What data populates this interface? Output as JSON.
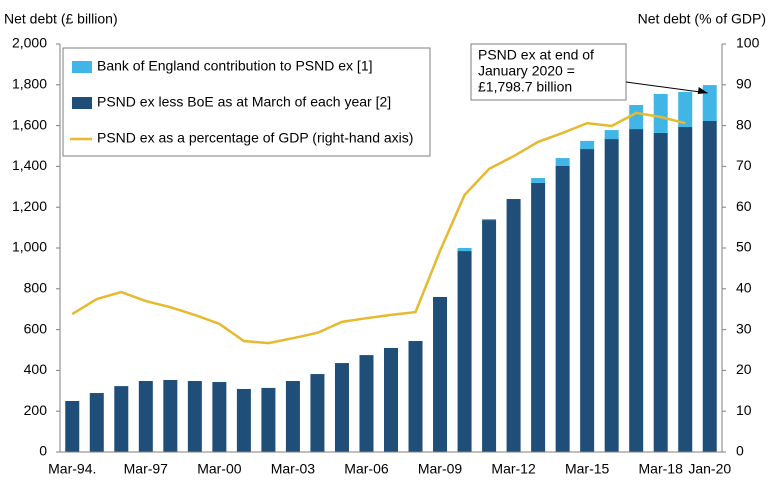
{
  "chart_data": {
    "type": "bar",
    "y_label": "Net debt (£ billion)",
    "y2_label": "Net debt (% of GDP)",
    "categories": [
      "Mar-94.",
      null,
      null,
      "Mar-97",
      null,
      null,
      "Mar-00",
      null,
      null,
      "Mar-03",
      null,
      null,
      "Mar-06",
      null,
      null,
      "Mar-09",
      null,
      null,
      "Mar-12",
      null,
      null,
      "Mar-15",
      null,
      null,
      "Mar-18",
      null,
      "Jan-20"
    ],
    "series": [
      {
        "name": "PSND ex less BoE as at March of each year [2]",
        "color": "#1f4e79",
        "type": "bar",
        "values": [
          250,
          289,
          323,
          348,
          353,
          348,
          343,
          309,
          314,
          348,
          382,
          436,
          475,
          510,
          544,
          760,
          985,
          1137,
          1240,
          1319,
          1402,
          1485,
          1534,
          1583,
          1564,
          1593,
          1622.7
        ]
      },
      {
        "name": "Bank of England contribution to PSND ex [1]",
        "color": "#41b6e6",
        "type": "bar",
        "values": [
          0,
          0,
          0,
          0,
          0,
          0,
          0,
          0,
          0,
          0,
          0,
          0,
          0,
          0,
          0,
          0,
          15,
          5,
          0,
          24,
          39,
          40,
          44,
          118,
          191,
          172,
          176
        ]
      },
      {
        "name": "PSND ex as a percentage of GDP (right-hand axis)",
        "color": "#e6b92e",
        "type": "line",
        "axis": "y2",
        "values": [
          33.8,
          37.5,
          39.2,
          37.0,
          35.5,
          33.6,
          31.4,
          27.2,
          26.7,
          27.9,
          29.2,
          31.9,
          32.8,
          33.6,
          34.3,
          49.3,
          63.0,
          69.4,
          72.5,
          76.0,
          78.2,
          80.6,
          79.9,
          83.1,
          82.1,
          80.6,
          null
        ]
      }
    ],
    "legend_order": [
      1,
      0,
      2
    ],
    "ylim": [
      0,
      2000
    ],
    "yticks": [
      0,
      200,
      400,
      600,
      800,
      {
        "value": 1000,
        "label": "1,000"
      },
      {
        "value": 1200,
        "label": "1,200"
      },
      {
        "value": 1400,
        "label": "1,400"
      },
      {
        "value": 1600,
        "label": "1,600"
      },
      {
        "value": 1800,
        "label": "1,800"
      },
      {
        "value": 2000,
        "label": "2,000"
      }
    ],
    "y2lim": [
      0,
      100
    ],
    "y2ticks": [
      0,
      10,
      20,
      30,
      40,
      50,
      60,
      70,
      80,
      90,
      100
    ],
    "annotation": {
      "lines": [
        "PSND ex at end of",
        "January 2020 =",
        "£1,798.7 billion"
      ],
      "category": 26
    }
  }
}
